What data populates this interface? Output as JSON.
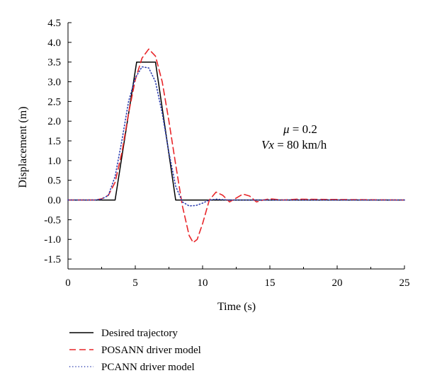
{
  "chart_data": {
    "type": "line",
    "title": "",
    "xlabel": "Time (s)",
    "ylabel": "Displacement (m)",
    "xlim": [
      0,
      25
    ],
    "ylim": [
      -1.75,
      4.5
    ],
    "xticks": [
      0,
      5,
      10,
      15,
      20,
      25
    ],
    "xtick_labels": [
      "0",
      "5",
      "10",
      "15",
      "20",
      "25"
    ],
    "yticks": [
      -1.5,
      -1.0,
      -0.5,
      0.0,
      0.5,
      1.0,
      1.5,
      2.0,
      2.5,
      3.0,
      3.5,
      4.0,
      4.5
    ],
    "ytick_labels": [
      "-1.5",
      "-1.0",
      "-0.5",
      "0.0",
      "0.5",
      "1.0",
      "1.5",
      "2.0",
      "2.5",
      "3.0",
      "3.5",
      "4.0",
      "4.5"
    ],
    "grid": false,
    "legend_position": "bottom-left, below the plot",
    "annotation_lines": [
      {
        "symbol": "μ",
        "text": " = 0.2"
      },
      {
        "symbol": "Vx",
        "text": " = 80 km/h"
      }
    ],
    "series": [
      {
        "name": "Desired trajectory",
        "color": "#000000",
        "dash": "solid",
        "points": [
          [
            0,
            0
          ],
          [
            3.5,
            0
          ],
          [
            5.1,
            3.5
          ],
          [
            6.5,
            3.5
          ],
          [
            8.0,
            0
          ],
          [
            25,
            0
          ]
        ]
      },
      {
        "name": "POSANN driver model",
        "color": "#e8262a",
        "dash": "dashed",
        "points": [
          [
            0,
            0
          ],
          [
            2,
            0
          ],
          [
            2.5,
            0.03
          ],
          [
            3,
            0.12
          ],
          [
            3.5,
            0.45
          ],
          [
            4,
            1.2
          ],
          [
            4.5,
            2.2
          ],
          [
            5,
            3.05
          ],
          [
            5.5,
            3.6
          ],
          [
            6,
            3.83
          ],
          [
            6.5,
            3.65
          ],
          [
            7,
            3.0
          ],
          [
            7.5,
            2.0
          ],
          [
            8,
            0.9
          ],
          [
            8.5,
            -0.15
          ],
          [
            9,
            -0.9
          ],
          [
            9.3,
            -1.08
          ],
          [
            9.6,
            -1.0
          ],
          [
            10,
            -0.6
          ],
          [
            10.5,
            0.0
          ],
          [
            11,
            0.2
          ],
          [
            11.5,
            0.12
          ],
          [
            12,
            -0.05
          ],
          [
            12.5,
            0.05
          ],
          [
            13,
            0.15
          ],
          [
            13.5,
            0.1
          ],
          [
            14,
            -0.05
          ],
          [
            14.5,
            0.0
          ],
          [
            15,
            0.03
          ],
          [
            16,
            0.0
          ],
          [
            17,
            0.02
          ],
          [
            25,
            0
          ]
        ]
      },
      {
        "name": "PCANN driver model",
        "color": "#2e3fb0",
        "dash": "dotted",
        "points": [
          [
            0,
            0
          ],
          [
            2,
            0
          ],
          [
            2.5,
            0.02
          ],
          [
            3,
            0.12
          ],
          [
            3.5,
            0.6
          ],
          [
            4,
            1.5
          ],
          [
            4.5,
            2.5
          ],
          [
            5,
            3.1
          ],
          [
            5.5,
            3.38
          ],
          [
            6,
            3.35
          ],
          [
            6.5,
            3.0
          ],
          [
            7,
            2.2
          ],
          [
            7.5,
            1.2
          ],
          [
            8,
            0.35
          ],
          [
            8.5,
            -0.05
          ],
          [
            9,
            -0.15
          ],
          [
            9.5,
            -0.14
          ],
          [
            10,
            -0.08
          ],
          [
            10.5,
            0.0
          ],
          [
            11,
            0.02
          ],
          [
            12,
            0
          ],
          [
            25,
            0
          ]
        ]
      }
    ]
  }
}
